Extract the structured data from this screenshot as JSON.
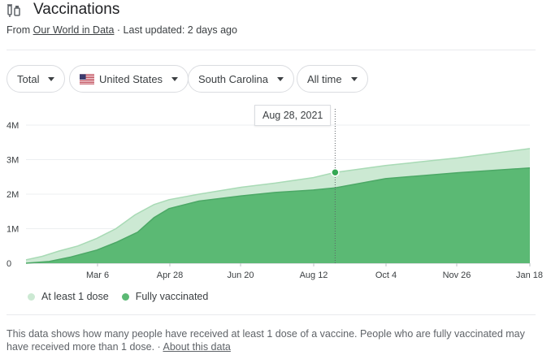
{
  "header": {
    "title": "Vaccinations",
    "source_prefix": "From ",
    "source_link": "Our World in Data",
    "source_suffix": " · Last updated: 2 days ago"
  },
  "filters": [
    {
      "label": "Total"
    },
    {
      "label": "United States",
      "flag": "us-flag-icon"
    },
    {
      "label": "South Carolina"
    },
    {
      "label": "All time"
    }
  ],
  "tooltip": {
    "date": "Aug 28, 2021"
  },
  "colors": {
    "at_least_one_dose": "#cce9d3",
    "fully_vaccinated": "#5bb974",
    "highlight": "#34a853"
  },
  "chart_data": {
    "type": "area",
    "x_tick_labels": [
      "Mar 6",
      "Apr 28",
      "Jun 20",
      "Aug 12",
      "Oct 4",
      "Nov 26",
      "Jan 18"
    ],
    "y_tick_labels": [
      "0",
      "1M",
      "2M",
      "3M",
      "4M"
    ],
    "ylim": [
      0,
      4000000
    ],
    "xlim": [
      "2021-01-13",
      "2022-01-18"
    ],
    "highlight": {
      "date": "2021-08-28",
      "value": 2630000
    },
    "series": [
      {
        "name": "At least 1 dose",
        "points": [
          [
            "2021-01-13",
            100000
          ],
          [
            "2021-01-25",
            200000
          ],
          [
            "2021-02-06",
            350000
          ],
          [
            "2021-02-20",
            500000
          ],
          [
            "2021-03-06",
            720000
          ],
          [
            "2021-03-20",
            1000000
          ],
          [
            "2021-04-03",
            1400000
          ],
          [
            "2021-04-17",
            1700000
          ],
          [
            "2021-04-28",
            1840000
          ],
          [
            "2021-05-20",
            2000000
          ],
          [
            "2021-06-20",
            2200000
          ],
          [
            "2021-07-15",
            2320000
          ],
          [
            "2021-08-12",
            2480000
          ],
          [
            "2021-08-28",
            2630000
          ],
          [
            "2021-10-04",
            2830000
          ],
          [
            "2021-11-26",
            3050000
          ],
          [
            "2022-01-18",
            3320000
          ]
        ]
      },
      {
        "name": "Fully vaccinated",
        "points": [
          [
            "2021-01-13",
            0
          ],
          [
            "2021-01-30",
            50000
          ],
          [
            "2021-02-15",
            180000
          ],
          [
            "2021-03-06",
            380000
          ],
          [
            "2021-03-20",
            600000
          ],
          [
            "2021-04-05",
            900000
          ],
          [
            "2021-04-17",
            1320000
          ],
          [
            "2021-04-28",
            1580000
          ],
          [
            "2021-05-20",
            1800000
          ],
          [
            "2021-06-20",
            1950000
          ],
          [
            "2021-07-15",
            2050000
          ],
          [
            "2021-08-12",
            2120000
          ],
          [
            "2021-08-28",
            2180000
          ],
          [
            "2021-10-04",
            2450000
          ],
          [
            "2021-11-26",
            2620000
          ],
          [
            "2022-01-18",
            2760000
          ]
        ]
      }
    ]
  },
  "legend": {
    "items": [
      {
        "label": "At least 1 dose"
      },
      {
        "label": "Fully vaccinated"
      }
    ]
  },
  "footnote": {
    "text": "This data shows how many people have received at least 1 dose of a vaccine. People who are fully vaccinated may have received more than 1 dose.",
    "separator": " · ",
    "about_link": "About this data"
  }
}
